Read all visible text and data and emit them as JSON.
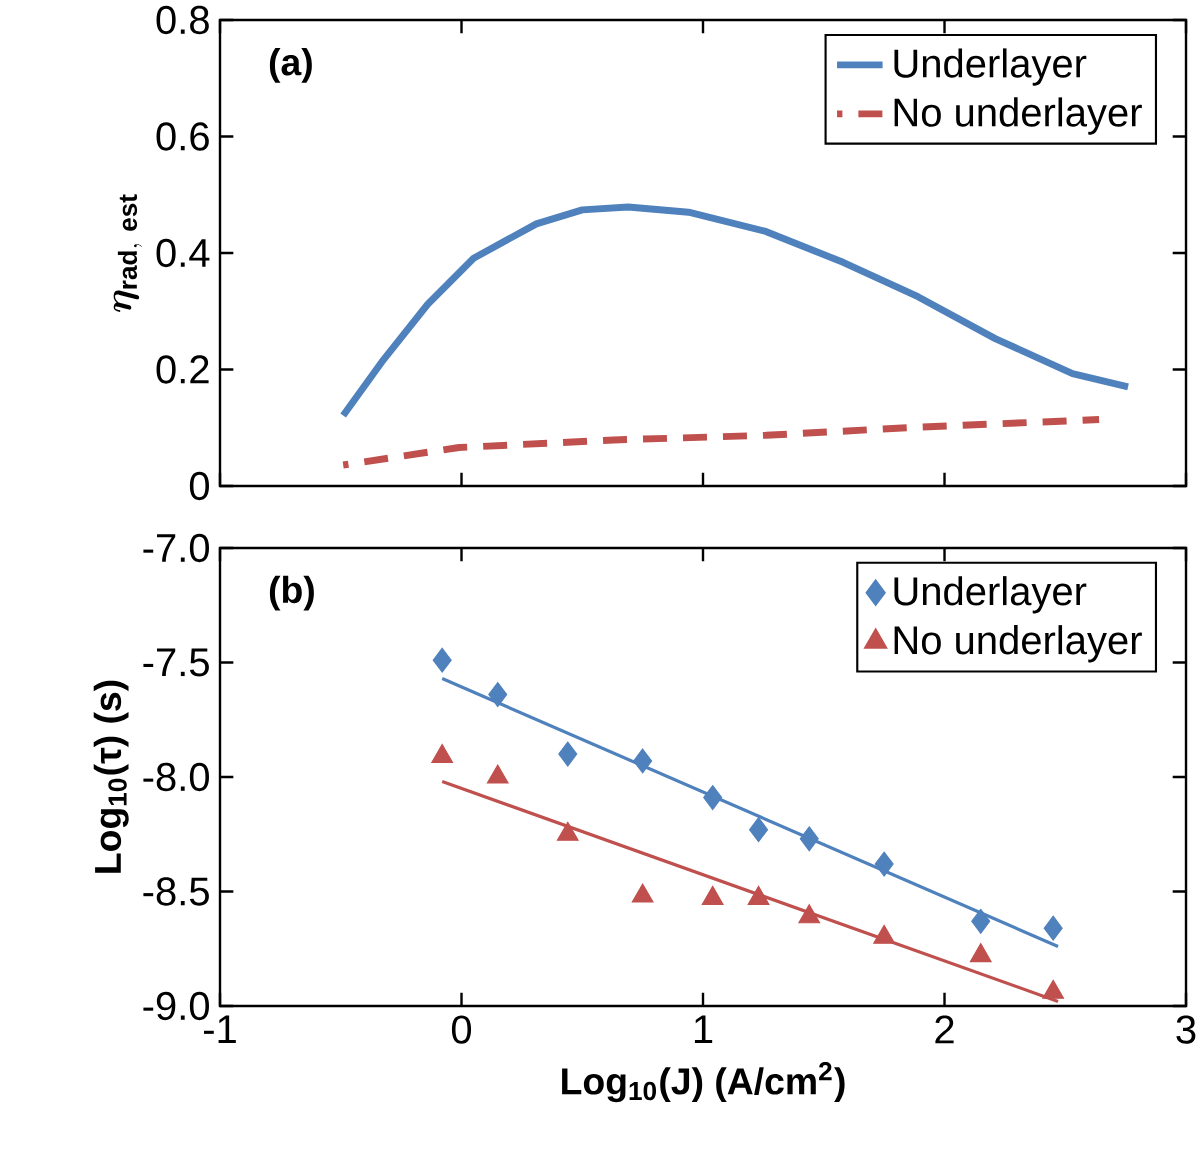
{
  "chart_data": [
    {
      "type": "line",
      "ylabel": "\\boldsymbol{\\eta}_{\\mathbf{rad,\\ est}}",
      "annotations": [
        "(a)"
      ],
      "xlim": [
        -1,
        3
      ],
      "xticks": [
        -1,
        0,
        1,
        2,
        3
      ],
      "ylim": [
        0,
        0.8
      ],
      "yticks": [
        0,
        0.2,
        0.4,
        0.6,
        0.8
      ],
      "tick_labels": "y",
      "legend": "top right",
      "series": [
        {
          "name": "Underlayer",
          "color": "#4f81bd",
          "line_style": "solid",
          "x": [
            -0.49,
            -0.33,
            -0.14,
            0.05,
            0.31,
            0.5,
            0.69,
            0.94,
            1.26,
            1.58,
            1.89,
            2.21,
            2.53,
            2.76
          ],
          "values": [
            0.121,
            0.213,
            0.312,
            0.391,
            0.45,
            0.474,
            0.479,
            0.47,
            0.437,
            0.384,
            0.325,
            0.253,
            0.193,
            0.17
          ]
        },
        {
          "name": "No underlayer",
          "color": "#c0504d",
          "line_style": "dashed",
          "x": [
            -0.49,
            -0.01,
            0.63,
            1.26,
            1.89,
            2.64
          ],
          "values": [
            0.036,
            0.066,
            0.079,
            0.087,
            0.101,
            0.114
          ]
        }
      ]
    },
    {
      "type": "scatter",
      "xlabel": "Log$_{10}$(J) (A/cm$^{2}$)",
      "ylabel": "Log$_{10}$(τ) (s)",
      "annotations": [
        "(b)"
      ],
      "xlim": [
        -1,
        3
      ],
      "xticks": [
        -1,
        0,
        1,
        2,
        3
      ],
      "ylim": [
        -9,
        -7
      ],
      "yticks": [
        {
          "value": -9,
          "label": "-9.0"
        },
        -8.5,
        {
          "value": -8,
          "label": "-8.0"
        },
        -7.5,
        {
          "value": -7,
          "label": "-7.0"
        }
      ],
      "legend": "top right",
      "series": [
        {
          "name": "Underlayer",
          "color": "#4f81bd",
          "marker": "diamond",
          "x": [
            -0.08,
            0.15,
            0.44,
            0.75,
            1.04,
            1.23,
            1.44,
            1.75,
            2.15,
            2.45
          ],
          "values": [
            -7.49,
            -7.64,
            -7.9,
            -7.93,
            -8.09,
            -8.23,
            -8.27,
            -8.38,
            -8.63,
            -8.66
          ]
        },
        {
          "name": "No underlayer",
          "color": "#c0504d",
          "marker": "triangle",
          "x": [
            -0.08,
            0.15,
            0.44,
            0.75,
            1.04,
            1.23,
            1.44,
            1.75,
            2.15,
            2.45
          ],
          "values": [
            -7.91,
            -8.0,
            -8.25,
            -8.52,
            -8.53,
            -8.53,
            -8.61,
            -8.7,
            -8.78,
            -8.94
          ]
        },
        {
          "type": "line",
          "color": "#4f81bd",
          "x": [
            -0.08,
            2.47
          ],
          "values": [
            -7.57,
            -8.74
          ]
        },
        {
          "type": "line",
          "color": "#c0504d",
          "x": [
            -0.08,
            2.47
          ],
          "values": [
            -8.02,
            -8.98
          ]
        }
      ]
    }
  ]
}
